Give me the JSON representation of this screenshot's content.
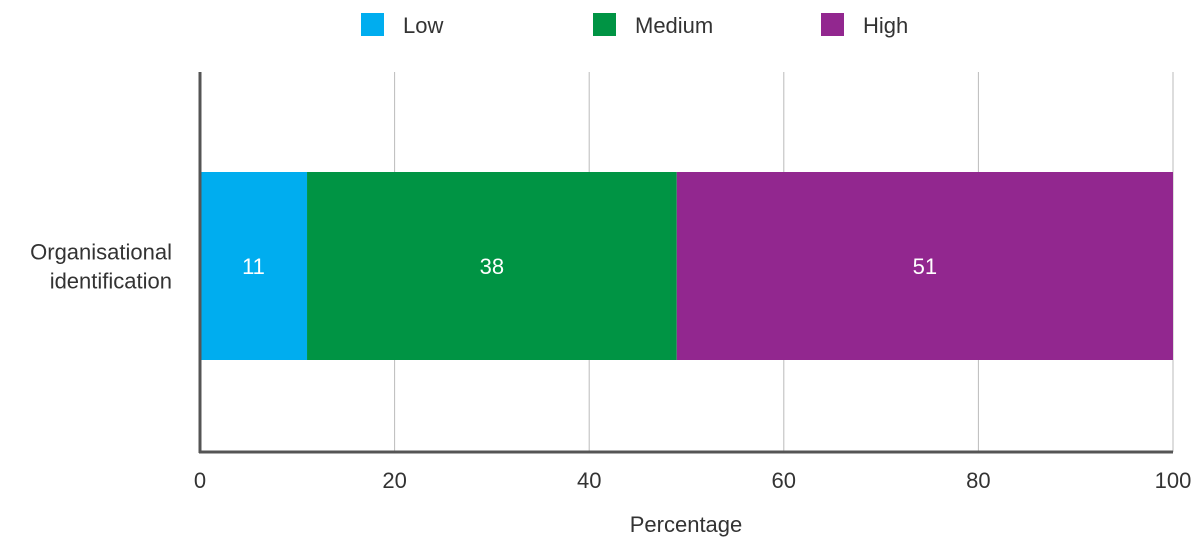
{
  "chart_data": {
    "type": "bar",
    "orientation": "horizontal",
    "stacked": true,
    "categories": [
      "Organisational identification"
    ],
    "category_label_lines": [
      [
        "Organisational",
        "identification"
      ]
    ],
    "series": [
      {
        "name": "Low",
        "values": [
          11
        ],
        "color": "#00adef"
      },
      {
        "name": "Medium",
        "values": [
          38
        ],
        "color": "#009444"
      },
      {
        "name": "High",
        "values": [
          51
        ],
        "color": "#92278f"
      }
    ],
    "xlabel": "Percentage",
    "ylabel": "",
    "xlim": [
      0,
      100
    ],
    "x_ticks": [
      0,
      20,
      40,
      60,
      80,
      100
    ],
    "grid": "vertical",
    "legend_position": "top-center",
    "data_label_color": "#ffffff",
    "axis_color": "#555555",
    "grid_color": "#bbbbbb",
    "text_color": "#333333"
  }
}
